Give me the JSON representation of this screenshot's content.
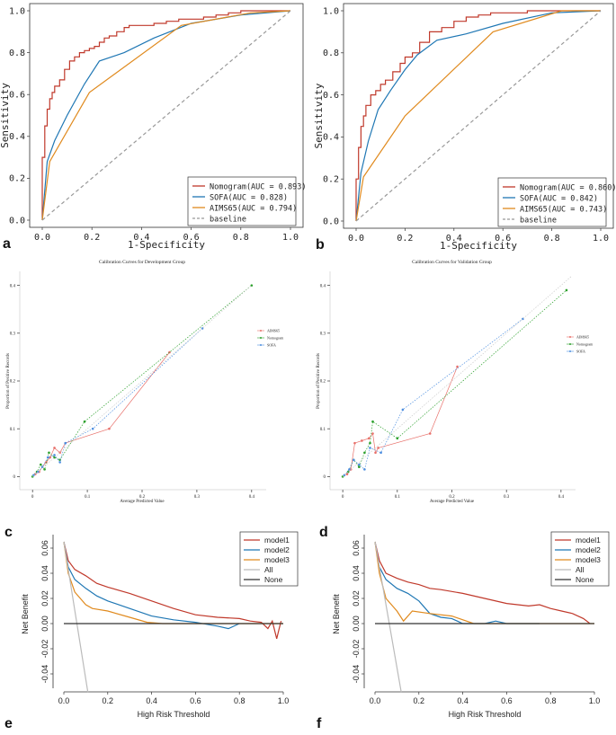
{
  "figure": {
    "panel_labels": [
      "a",
      "b",
      "c",
      "d",
      "e",
      "f"
    ]
  },
  "chart_data": [
    {
      "panel": "a",
      "type": "line",
      "title": "",
      "xlabel": "1-Specificity",
      "ylabel": "Sensitivity",
      "xlim": [
        0,
        1
      ],
      "ylim": [
        0,
        1
      ],
      "xticks": [
        "0.0",
        "0.2",
        "0.4",
        "0.6",
        "0.8",
        "1.0"
      ],
      "yticks": [
        "0.0",
        "0.2",
        "0.4",
        "0.6",
        "0.8",
        "1.0"
      ],
      "legend_position": "bottom-right",
      "series": [
        {
          "name": "Nomogram",
          "legend": "Nomogram(AUC = 0.893)",
          "color": "#c0392b",
          "style": "step",
          "x": [
            0,
            0.01,
            0.02,
            0.03,
            0.04,
            0.05,
            0.07,
            0.09,
            0.11,
            0.13,
            0.15,
            0.17,
            0.19,
            0.21,
            0.23,
            0.25,
            0.27,
            0.3,
            0.33,
            0.35,
            0.4,
            0.45,
            0.5,
            0.55,
            0.6,
            0.65,
            0.7,
            0.75,
            0.8,
            0.9,
            1.0
          ],
          "y": [
            0,
            0.3,
            0.45,
            0.53,
            0.58,
            0.61,
            0.64,
            0.67,
            0.72,
            0.76,
            0.78,
            0.8,
            0.81,
            0.82,
            0.83,
            0.85,
            0.87,
            0.88,
            0.9,
            0.92,
            0.93,
            0.93,
            0.94,
            0.95,
            0.96,
            0.96,
            0.97,
            0.98,
            0.99,
            1.0,
            1.0
          ]
        },
        {
          "name": "SOFA",
          "legend": "SOFA(AUC = 0.828)",
          "color": "#1f77b4",
          "style": "line",
          "x": [
            0,
            0.02,
            0.05,
            0.1,
            0.17,
            0.23,
            0.33,
            0.45,
            0.6,
            0.8,
            1.0
          ],
          "y": [
            0,
            0.28,
            0.38,
            0.5,
            0.65,
            0.76,
            0.8,
            0.87,
            0.94,
            0.98,
            1.0
          ]
        },
        {
          "name": "AIMS65",
          "legend": "AIMS65(AUC = 0.794)",
          "color": "#e08a1e",
          "style": "line",
          "x": [
            0,
            0.03,
            0.19,
            0.56,
            0.84,
            1.0
          ],
          "y": [
            0,
            0.28,
            0.61,
            0.93,
            0.99,
            1.0
          ]
        },
        {
          "name": "baseline",
          "legend": "baseline",
          "color": "#999999",
          "style": "dashed",
          "x": [
            0,
            1
          ],
          "y": [
            0,
            1
          ]
        }
      ]
    },
    {
      "panel": "b",
      "type": "line",
      "title": "",
      "xlabel": "1-Specificity",
      "ylabel": "Sensitivity",
      "xlim": [
        0,
        1
      ],
      "ylim": [
        0,
        1
      ],
      "xticks": [
        "0.0",
        "0.2",
        "0.4",
        "0.6",
        "0.8",
        "1.0"
      ],
      "yticks": [
        "0.0",
        "0.2",
        "0.4",
        "0.6",
        "0.8",
        "1.0"
      ],
      "legend_position": "bottom-right",
      "series": [
        {
          "name": "Nomogram",
          "legend": "Nomogram(AUC = 0.860)",
          "color": "#c0392b",
          "style": "step",
          "x": [
            0,
            0.01,
            0.02,
            0.03,
            0.04,
            0.06,
            0.08,
            0.1,
            0.12,
            0.15,
            0.18,
            0.2,
            0.23,
            0.26,
            0.3,
            0.35,
            0.4,
            0.45,
            0.5,
            0.55,
            0.6,
            0.7,
            0.8,
            1.0
          ],
          "y": [
            0,
            0.2,
            0.35,
            0.45,
            0.5,
            0.55,
            0.6,
            0.62,
            0.65,
            0.67,
            0.71,
            0.75,
            0.78,
            0.8,
            0.85,
            0.9,
            0.92,
            0.95,
            0.97,
            0.98,
            0.99,
            0.99,
            1.0,
            1.0
          ]
        },
        {
          "name": "SOFA",
          "legend": "SOFA(AUC = 0.842)",
          "color": "#1f77b4",
          "style": "line",
          "x": [
            0,
            0.02,
            0.05,
            0.09,
            0.14,
            0.2,
            0.25,
            0.33,
            0.45,
            0.6,
            0.8,
            1.0
          ],
          "y": [
            0,
            0.23,
            0.38,
            0.53,
            0.62,
            0.72,
            0.79,
            0.86,
            0.89,
            0.94,
            0.99,
            1.0
          ]
        },
        {
          "name": "AIMS65",
          "legend": "AIMS65(AUC = 0.743)",
          "color": "#e08a1e",
          "style": "line",
          "x": [
            0,
            0.03,
            0.2,
            0.56,
            0.84,
            1.0
          ],
          "y": [
            0,
            0.21,
            0.5,
            0.9,
            1.0,
            1.0
          ]
        },
        {
          "name": "baseline",
          "legend": "baseline",
          "color": "#999999",
          "style": "dashed",
          "x": [
            0,
            1
          ],
          "y": [
            0,
            1
          ]
        }
      ]
    },
    {
      "panel": "c",
      "type": "line",
      "title": "Calibration Curves for Development Group",
      "xlabel": "Average Predicted Value",
      "ylabel": "Proportion of Positive Records",
      "xlim": [
        -0.02,
        0.42
      ],
      "ylim": [
        -0.02,
        0.42
      ],
      "xticks": [
        "0",
        "0.1",
        "0.2",
        "0.3",
        "0.4"
      ],
      "yticks": [
        "0",
        "0.1",
        "0.2",
        "0.3",
        "0.4"
      ],
      "legend_position": "right",
      "series": [
        {
          "name": "AIMS65",
          "color": "#e8706a",
          "style": "solid-markers",
          "x": [
            0.005,
            0.012,
            0.018,
            0.025,
            0.032,
            0.04,
            0.05,
            0.06,
            0.14,
            0.25
          ],
          "y": [
            0.005,
            0.01,
            0.02,
            0.03,
            0.04,
            0.06,
            0.05,
            0.07,
            0.1,
            0.26
          ]
        },
        {
          "name": "Nomogram",
          "color": "#2ca02c",
          "style": "dotted-markers",
          "x": [
            0,
            0.008,
            0.015,
            0.022,
            0.03,
            0.04,
            0.05,
            0.095,
            0.4
          ],
          "y": [
            0,
            0.01,
            0.025,
            0.015,
            0.05,
            0.04,
            0.035,
            0.115,
            0.4
          ]
        },
        {
          "name": "SOFA",
          "color": "#4e8fe0",
          "style": "dotted-markers",
          "x": [
            0.002,
            0.01,
            0.018,
            0.028,
            0.04,
            0.05,
            0.06,
            0.11,
            0.31
          ],
          "y": [
            0.003,
            0.01,
            0.02,
            0.04,
            0.045,
            0.03,
            0.07,
            0.1,
            0.31
          ]
        },
        {
          "name": "ideal",
          "color": "#cccccc",
          "style": "dotted",
          "x": [
            0,
            0.4
          ],
          "y": [
            0,
            0.4
          ]
        }
      ]
    },
    {
      "panel": "d",
      "type": "line",
      "title": "Calibration Curves for Validation Group",
      "xlabel": "Average Predicted Value",
      "ylabel": "Proportion of Positive Records",
      "xlim": [
        -0.02,
        0.42
      ],
      "ylim": [
        -0.02,
        0.42
      ],
      "xticks": [
        "0",
        "0.1",
        "0.2",
        "0.3",
        "0.4"
      ],
      "yticks": [
        "0",
        "0.1",
        "0.2",
        "0.3",
        "0.4"
      ],
      "legend_position": "right",
      "series": [
        {
          "name": "AIMS65",
          "color": "#e8706a",
          "style": "solid-markers",
          "x": [
            0.008,
            0.015,
            0.022,
            0.035,
            0.048,
            0.055,
            0.06,
            0.065,
            0.16,
            0.21
          ],
          "y": [
            0.005,
            0.015,
            0.07,
            0.075,
            0.08,
            0.09,
            0.05,
            0.06,
            0.09,
            0.23
          ]
        },
        {
          "name": "Nomogram",
          "color": "#2ca02c",
          "style": "dotted-markers",
          "x": [
            0,
            0.01,
            0.02,
            0.03,
            0.04,
            0.05,
            0.055,
            0.1,
            0.41
          ],
          "y": [
            0,
            0.01,
            0.035,
            0.02,
            0.05,
            0.07,
            0.115,
            0.08,
            0.39
          ]
        },
        {
          "name": "SOFA",
          "color": "#4e8fe0",
          "style": "dotted-markers",
          "x": [
            0.003,
            0.012,
            0.02,
            0.03,
            0.04,
            0.05,
            0.07,
            0.11,
            0.33
          ],
          "y": [
            0.003,
            0.015,
            0.035,
            0.025,
            0.015,
            0.06,
            0.05,
            0.14,
            0.33
          ]
        },
        {
          "name": "ideal",
          "color": "#cccccc",
          "style": "dotted",
          "x": [
            0,
            0.42
          ],
          "y": [
            0,
            0.42
          ]
        }
      ]
    },
    {
      "panel": "e",
      "type": "line",
      "title": "",
      "xlabel": "High Risk Threshold",
      "ylabel": "Net Benefit",
      "xlim": [
        0,
        1
      ],
      "ylim": [
        -0.05,
        0.065
      ],
      "xticks": [
        "0.0",
        "0.2",
        "0.4",
        "0.6",
        "0.8",
        "1.0"
      ],
      "yticks": [
        "-0.04",
        "-0.02",
        "0.00",
        "0.02",
        "0.04",
        "0.06"
      ],
      "legend_position": "top-right",
      "series": [
        {
          "name": "model1",
          "color": "#c0392b",
          "x": [
            0,
            0.02,
            0.05,
            0.1,
            0.15,
            0.2,
            0.3,
            0.4,
            0.5,
            0.6,
            0.7,
            0.8,
            0.85,
            0.9,
            0.93,
            0.95,
            0.97,
            0.98,
            0.99
          ],
          "y": [
            0.065,
            0.05,
            0.043,
            0.038,
            0.032,
            0.029,
            0.024,
            0.018,
            0.012,
            0.007,
            0.005,
            0.004,
            0.002,
            0.001,
            -0.004,
            0.002,
            -0.012,
            -0.005,
            0.002
          ]
        },
        {
          "name": "model2",
          "color": "#1f77b4",
          "x": [
            0,
            0.02,
            0.05,
            0.1,
            0.15,
            0.2,
            0.3,
            0.4,
            0.5,
            0.6,
            0.7,
            0.75,
            0.8
          ],
          "y": [
            0.065,
            0.045,
            0.035,
            0.028,
            0.022,
            0.018,
            0.012,
            0.006,
            0.003,
            0.001,
            -0.002,
            -0.004,
            0.0
          ]
        },
        {
          "name": "model3",
          "color": "#e08a1e",
          "x": [
            0,
            0.02,
            0.05,
            0.1,
            0.13,
            0.2,
            0.3,
            0.38,
            0.45,
            1.0
          ],
          "y": [
            0.065,
            0.04,
            0.025,
            0.015,
            0.012,
            0.01,
            0.005,
            0.001,
            0.0,
            0.0
          ]
        },
        {
          "name": "All",
          "color": "#bbbbbb",
          "x": [
            0,
            0.11
          ],
          "y": [
            0.065,
            -0.055
          ]
        },
        {
          "name": "None",
          "color": "#333333",
          "x": [
            0,
            1
          ],
          "y": [
            0,
            0
          ]
        }
      ]
    },
    {
      "panel": "f",
      "type": "line",
      "title": "",
      "xlabel": "High Risk Threshold",
      "ylabel": "Net Benefit",
      "xlim": [
        0,
        1
      ],
      "ylim": [
        -0.05,
        0.065
      ],
      "xticks": [
        "0.0",
        "0.2",
        "0.4",
        "0.6",
        "0.8",
        "1.0"
      ],
      "yticks": [
        "-0.04",
        "-0.02",
        "0.00",
        "0.02",
        "0.04",
        "0.06"
      ],
      "legend_position": "top-right",
      "series": [
        {
          "name": "model1",
          "color": "#c0392b",
          "x": [
            0,
            0.02,
            0.05,
            0.1,
            0.15,
            0.2,
            0.25,
            0.3,
            0.4,
            0.5,
            0.6,
            0.7,
            0.75,
            0.8,
            0.85,
            0.9,
            0.95,
            0.98
          ],
          "y": [
            0.065,
            0.05,
            0.04,
            0.036,
            0.033,
            0.031,
            0.028,
            0.027,
            0.024,
            0.02,
            0.016,
            0.014,
            0.015,
            0.012,
            0.01,
            0.008,
            0.004,
            0.0
          ]
        },
        {
          "name": "model2",
          "color": "#1f77b4",
          "x": [
            0,
            0.02,
            0.05,
            0.1,
            0.15,
            0.2,
            0.25,
            0.3,
            0.35,
            0.4,
            0.5,
            0.55,
            0.6,
            0.7,
            0.75
          ],
          "y": [
            0.065,
            0.045,
            0.035,
            0.028,
            0.024,
            0.018,
            0.008,
            0.005,
            0.004,
            0.0,
            0.0,
            0.002,
            0.0,
            0.0,
            0.0
          ]
        },
        {
          "name": "model3",
          "color": "#e08a1e",
          "x": [
            0,
            0.02,
            0.05,
            0.1,
            0.13,
            0.17,
            0.25,
            0.35,
            0.45,
            1.0
          ],
          "y": [
            0.065,
            0.04,
            0.02,
            0.01,
            0.002,
            0.01,
            0.008,
            0.006,
            0.0,
            0.0
          ]
        },
        {
          "name": "All",
          "color": "#bbbbbb",
          "x": [
            0,
            0.12
          ],
          "y": [
            0.065,
            -0.055
          ]
        },
        {
          "name": "None",
          "color": "#333333",
          "x": [
            0,
            1
          ],
          "y": [
            0,
            0
          ]
        }
      ]
    }
  ]
}
